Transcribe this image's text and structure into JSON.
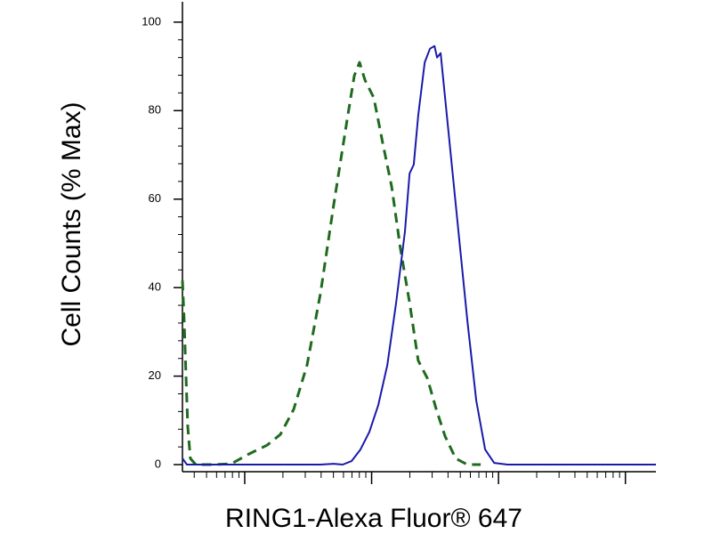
{
  "chart_data": {
    "type": "line",
    "x_label": "RING1-Alexa Fluor® 647",
    "y_label": "Cell Counts (% Max)",
    "xscale": "log",
    "xlim": [
      3.23,
      17400
    ],
    "xticks": [
      10,
      100,
      1000,
      10000
    ],
    "ylim": [
      -1.6,
      104.6
    ],
    "yticks": [
      0,
      20,
      40,
      60,
      80,
      100
    ],
    "grid": false,
    "series": [
      {
        "color": "#1e6b1e",
        "dashed": true,
        "x": [
          3.23,
          3.33,
          3.44,
          3.56,
          3.73,
          4.11,
          5.67,
          7.85,
          10.8,
          15.0,
          19.1,
          24.3,
          31.0,
          39.5,
          50.3,
          64.1,
          73.0,
          80.4,
          88.6,
          104,
          122,
          144,
          169,
          199,
          233,
          275,
          323,
          379,
          460,
          568,
          724
        ],
        "values": [
          41.6,
          32.6,
          20.5,
          8.5,
          1.4,
          0,
          0,
          0.2,
          2.4,
          4.4,
          6.8,
          12.5,
          22.5,
          38.6,
          58.8,
          77.9,
          87.9,
          90.9,
          86.9,
          82.9,
          72.8,
          62.8,
          48.7,
          36.6,
          23.5,
          19.5,
          12.5,
          6.4,
          1.4,
          0,
          0
        ]
      },
      {
        "color": "#1a1aaa",
        "dashed": false,
        "x": [
          3.23,
          3.5,
          4.11,
          15.0,
          24.3,
          39.5,
          50.3,
          59.2,
          69.5,
          81.7,
          96.0,
          113,
          133,
          156,
          183,
          199,
          215,
          233,
          262,
          288,
          313,
          328,
          350,
          379,
          425,
          483,
          568,
          668,
          785,
          923,
          1175,
          17400
        ],
        "values": [
          1.4,
          0,
          0,
          0,
          0,
          0,
          0.2,
          0,
          0.8,
          3.4,
          7.4,
          13.5,
          22.5,
          36.6,
          52.7,
          65.8,
          67.8,
          78.9,
          90.9,
          94,
          94.6,
          92,
          93,
          82.9,
          68.8,
          52.7,
          32.6,
          14.5,
          3.4,
          0.4,
          0,
          0
        ]
      }
    ]
  }
}
